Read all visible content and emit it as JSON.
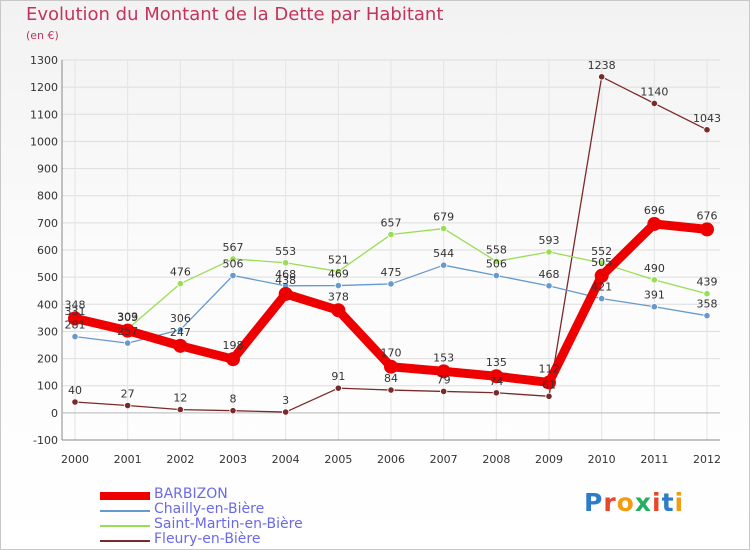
{
  "title": "Evolution du Montant de la Dette par Habitant",
  "unit_label": "(en €)",
  "logo_text": "Proxiti",
  "chart_data": {
    "type": "line",
    "x": [
      "2000",
      "2001",
      "2002",
      "2003",
      "2004",
      "2005",
      "2006",
      "2007",
      "2008",
      "2009",
      "2010",
      "2011",
      "2012"
    ],
    "ylim": [
      -100,
      1300
    ],
    "yticks": [
      -100,
      0,
      100,
      200,
      300,
      400,
      500,
      600,
      700,
      800,
      900,
      1000,
      1100,
      1200,
      1300
    ],
    "grid": true,
    "legend_position": "bottom-left",
    "series": [
      {
        "name": "BARBIZON",
        "color": "#ee0000",
        "values": [
          348,
          303,
          247,
          198,
          438,
          378,
          170,
          153,
          135,
          112,
          505,
          696,
          676
        ]
      },
      {
        "name": "Chailly-en-Bière",
        "color": "#6699cc",
        "values": [
          281,
          257,
          306,
          506,
          468,
          469,
          475,
          544,
          506,
          468,
          421,
          391,
          358
        ]
      },
      {
        "name": "Saint-Martin-en-Bière",
        "color": "#99dd55",
        "values": [
          331,
          309,
          476,
          567,
          553,
          521,
          657,
          679,
          558,
          593,
          552,
          490,
          439
        ]
      },
      {
        "name": "Fleury-en-Bière",
        "color": "#7a2a2a",
        "values": [
          40,
          27,
          12,
          8,
          3,
          91,
          84,
          79,
          74,
          61,
          1238,
          1140,
          1043
        ]
      }
    ]
  }
}
